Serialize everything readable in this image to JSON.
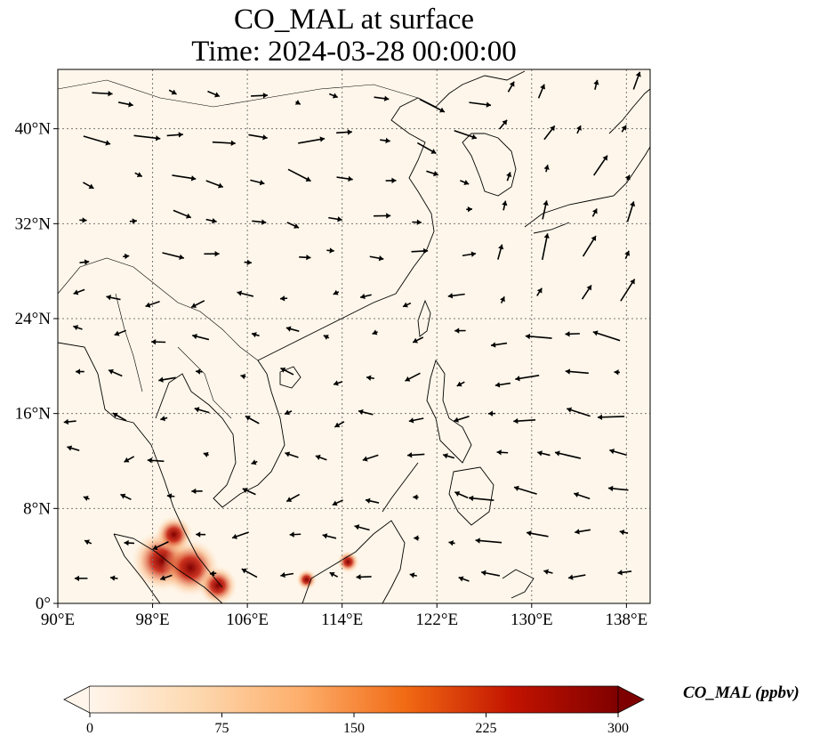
{
  "title": {
    "line1": "CO_MAL at surface",
    "line2": "Time: 2024-03-28 00:00:00"
  },
  "map": {
    "extent_lon": [
      90,
      140
    ],
    "extent_lat": [
      0,
      45
    ],
    "lon_ticks": [
      {
        "value": 90,
        "label": "90°E"
      },
      {
        "value": 98,
        "label": "98°E"
      },
      {
        "value": 106,
        "label": "106°E"
      },
      {
        "value": 114,
        "label": "114°E"
      },
      {
        "value": 122,
        "label": "122°E"
      },
      {
        "value": 130,
        "label": "130°E"
      },
      {
        "value": 138,
        "label": "138°E"
      }
    ],
    "lat_ticks": [
      {
        "value": 0,
        "label": "0°"
      },
      {
        "value": 8,
        "label": "8°N"
      },
      {
        "value": 16,
        "label": "16°N"
      },
      {
        "value": 24,
        "label": "24°N"
      },
      {
        "value": 32,
        "label": "32°N"
      },
      {
        "value": 40,
        "label": "40°N"
      }
    ],
    "gridlines": true,
    "background_color": "#fef6ea",
    "hotspots": [
      {
        "lon": 98.8,
        "lat": 3.6,
        "value": 300
      },
      {
        "lon": 101.2,
        "lat": 3.0,
        "value": 280
      },
      {
        "lon": 99.8,
        "lat": 5.8,
        "value": 150
      },
      {
        "lon": 103.5,
        "lat": 1.5,
        "value": 160
      },
      {
        "lon": 114.5,
        "lat": 3.5,
        "value": 50
      },
      {
        "lon": 111.0,
        "lat": 2.0,
        "value": 40
      }
    ]
  },
  "colorbar": {
    "label": "CO_MAL (ppbv)",
    "min": 0,
    "max": 300,
    "ticks": [
      "0",
      "75",
      "150",
      "225",
      "300"
    ],
    "extend": "both",
    "colors": [
      "#fff5eb",
      "#fdd9b0",
      "#fdae6b",
      "#f16913",
      "#c21300",
      "#7f0000"
    ]
  }
}
